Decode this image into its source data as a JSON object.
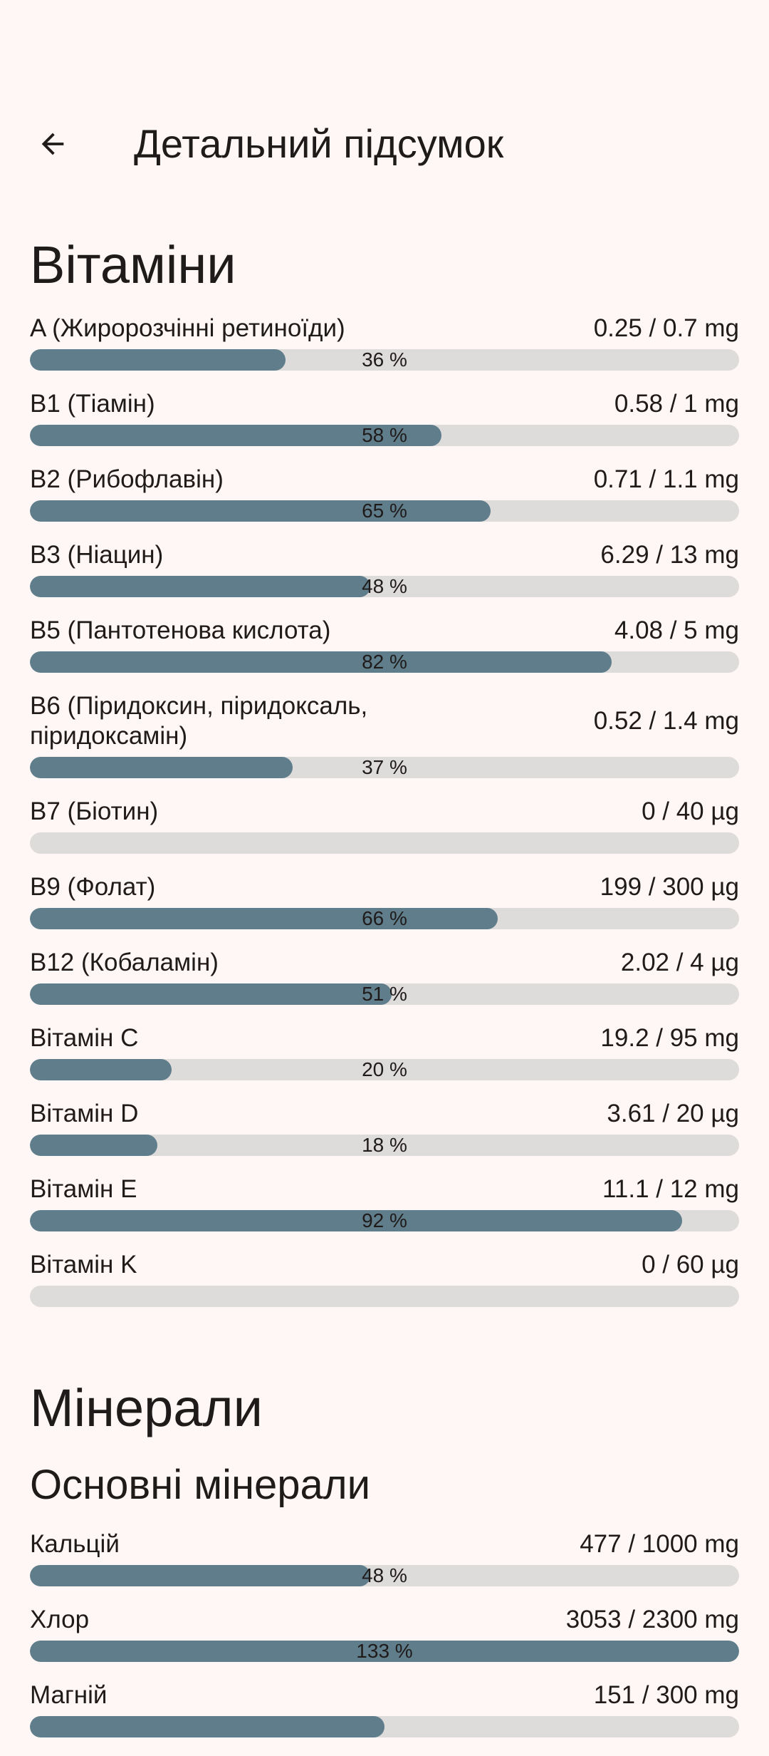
{
  "header": {
    "back_icon": "arrow-back-icon",
    "title": "Детальний підсумок"
  },
  "vitamins": {
    "title": "Вітаміни",
    "items": [
      {
        "name": "A (Жиророзчінні ретиноїди)",
        "value": "0.25 / 0.7 mg",
        "percent": 36,
        "percent_label": "36 %"
      },
      {
        "name": "B1 (Тіамін)",
        "value": "0.58 / 1 mg",
        "percent": 58,
        "percent_label": "58 %"
      },
      {
        "name": "B2 (Рибофлавін)",
        "value": "0.71 / 1.1 mg",
        "percent": 65,
        "percent_label": "65 %"
      },
      {
        "name": "B3 (Ніацин)",
        "value": "6.29 / 13 mg",
        "percent": 48,
        "percent_label": "48 %"
      },
      {
        "name": "B5 (Пантотенова кислота)",
        "value": "4.08 / 5 mg",
        "percent": 82,
        "percent_label": "82 %"
      },
      {
        "name": "B6 (Піридоксин, піридоксаль, піридоксамін)",
        "value": "0.52 / 1.4 mg",
        "percent": 37,
        "percent_label": "37 %"
      },
      {
        "name": "B7 (Біотин)",
        "value": "0 / 40 µg",
        "percent": 0,
        "percent_label": ""
      },
      {
        "name": "B9 (Фолат)",
        "value": "199 / 300 µg",
        "percent": 66,
        "percent_label": "66 %"
      },
      {
        "name": "B12 (Кобаламін)",
        "value": "2.02 / 4 µg",
        "percent": 51,
        "percent_label": "51 %"
      },
      {
        "name": "Вітамін C",
        "value": "19.2 / 95 mg",
        "percent": 20,
        "percent_label": "20 %"
      },
      {
        "name": "Вітамін D",
        "value": "3.61 / 20 µg",
        "percent": 18,
        "percent_label": "18 %"
      },
      {
        "name": "Вітамін E",
        "value": "11.1 / 12 mg",
        "percent": 92,
        "percent_label": "92 %"
      },
      {
        "name": "Вітамін K",
        "value": "0 / 60 µg",
        "percent": 0,
        "percent_label": ""
      }
    ]
  },
  "minerals": {
    "title": "Мінерали",
    "subtitle": "Основні мінерали",
    "items": [
      {
        "name": "Кальцій",
        "value": "477 / 1000 mg",
        "percent": 48,
        "percent_label": "48 %"
      },
      {
        "name": "Хлор",
        "value": "3053 / 2300 mg",
        "percent": 133,
        "percent_label": "133 %"
      },
      {
        "name": "Магній",
        "value": "151 / 300 mg",
        "percent": 50,
        "percent_label": ""
      }
    ]
  },
  "colors": {
    "background": "#fff7f5",
    "bar_fill": "#607d8b",
    "bar_track": "#dedbdb"
  }
}
